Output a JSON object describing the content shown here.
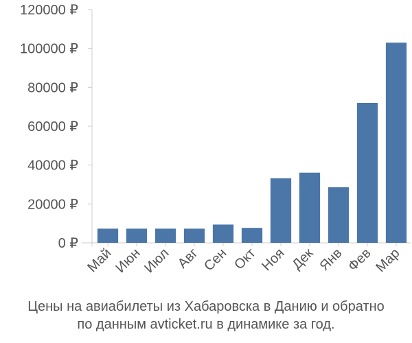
{
  "chart_data": {
    "type": "bar",
    "categories": [
      "Май",
      "Июн",
      "Июл",
      "Авг",
      "Сен",
      "Окт",
      "Ноя",
      "Дек",
      "Янв",
      "Фев",
      "Мар"
    ],
    "values": [
      7300,
      7300,
      7300,
      7300,
      9400,
      7700,
      33200,
      36100,
      28600,
      72000,
      103000
    ],
    "ylim": [
      0,
      120000
    ],
    "yticks": [
      0,
      20000,
      40000,
      60000,
      80000,
      100000,
      120000
    ],
    "ytick_labels": [
      "0 ₽",
      "20000 ₽",
      "40000 ₽",
      "60000 ₽",
      "80000 ₽",
      "100000 ₽",
      "120000 ₽"
    ],
    "grid": false,
    "legend": "none",
    "bar_color": "#4b76a8",
    "axis_color": "#cccccc",
    "label_color": "#555555"
  },
  "caption": {
    "line1": "Цены на авиабилеты из Хабаровска в Данию и обратно",
    "line2": "по данным avticket.ru в динамике за год."
  }
}
